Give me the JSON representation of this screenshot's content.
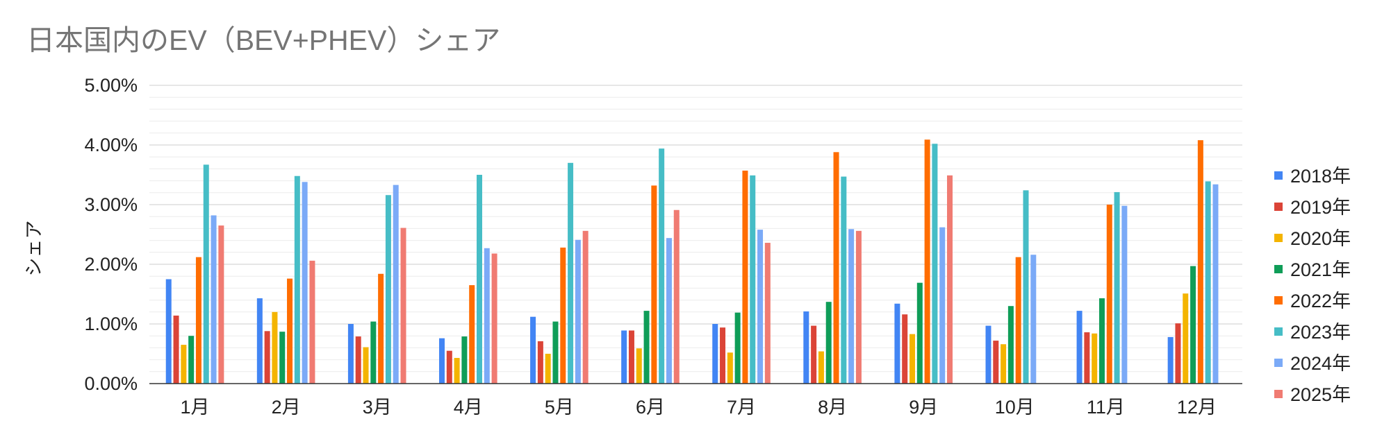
{
  "chart_data": {
    "type": "bar",
    "title": "日本国内のEV（BEV+PHEV）シェア",
    "xlabel": "",
    "ylabel": "シェア",
    "ylim": [
      0,
      0.05
    ],
    "y_ticks": [
      "0.00%",
      "1.00%",
      "2.00%",
      "3.00%",
      "4.00%",
      "5.00%"
    ],
    "grid": true,
    "legend_position": "right",
    "categories": [
      "1月",
      "2月",
      "3月",
      "4月",
      "5月",
      "6月",
      "7月",
      "8月",
      "9月",
      "10月",
      "11月",
      "12月"
    ],
    "series": [
      {
        "name": "2018年",
        "color": "#4285f4",
        "values": [
          0.0175,
          0.0143,
          0.01,
          0.0076,
          0.0112,
          0.0089,
          0.01,
          0.0121,
          0.0134,
          0.0097,
          0.0122,
          0.0078
        ]
      },
      {
        "name": "2019年",
        "color": "#db4437",
        "values": [
          0.0114,
          0.0088,
          0.0079,
          0.0055,
          0.0071,
          0.0089,
          0.0094,
          0.0097,
          0.0116,
          0.0072,
          0.0086,
          0.0101
        ]
      },
      {
        "name": "2020年",
        "color": "#f4b400",
        "values": [
          0.0065,
          0.012,
          0.0061,
          0.0043,
          0.005,
          0.0059,
          0.0052,
          0.0054,
          0.0083,
          0.0066,
          0.0084,
          0.0151
        ]
      },
      {
        "name": "2021年",
        "color": "#0f9d58",
        "values": [
          0.008,
          0.0087,
          0.0104,
          0.0079,
          0.0104,
          0.0122,
          0.0119,
          0.0137,
          0.0169,
          0.013,
          0.0143,
          0.0197
        ]
      },
      {
        "name": "2022年",
        "color": "#ff6d01",
        "values": [
          0.0212,
          0.0176,
          0.0184,
          0.0165,
          0.0228,
          0.0332,
          0.0357,
          0.0388,
          0.0409,
          0.0212,
          0.03,
          0.0408
        ]
      },
      {
        "name": "2023年",
        "color": "#46bdc6",
        "values": [
          0.0367,
          0.0348,
          0.0316,
          0.035,
          0.037,
          0.0394,
          0.0349,
          0.0347,
          0.0402,
          0.0324,
          0.0321,
          0.0339
        ]
      },
      {
        "name": "2024年",
        "color": "#7baaf7",
        "values": [
          0.0282,
          0.0338,
          0.0333,
          0.0227,
          0.0241,
          0.0244,
          0.0258,
          0.0259,
          0.0262,
          0.0216,
          0.0298,
          0.0334
        ]
      },
      {
        "name": "2025年",
        "color": "#f07b72",
        "values": [
          0.0265,
          0.0206,
          0.0261,
          0.0218,
          0.0256,
          0.0291,
          0.0236,
          0.0256,
          0.0349,
          null,
          null,
          null
        ]
      }
    ]
  }
}
